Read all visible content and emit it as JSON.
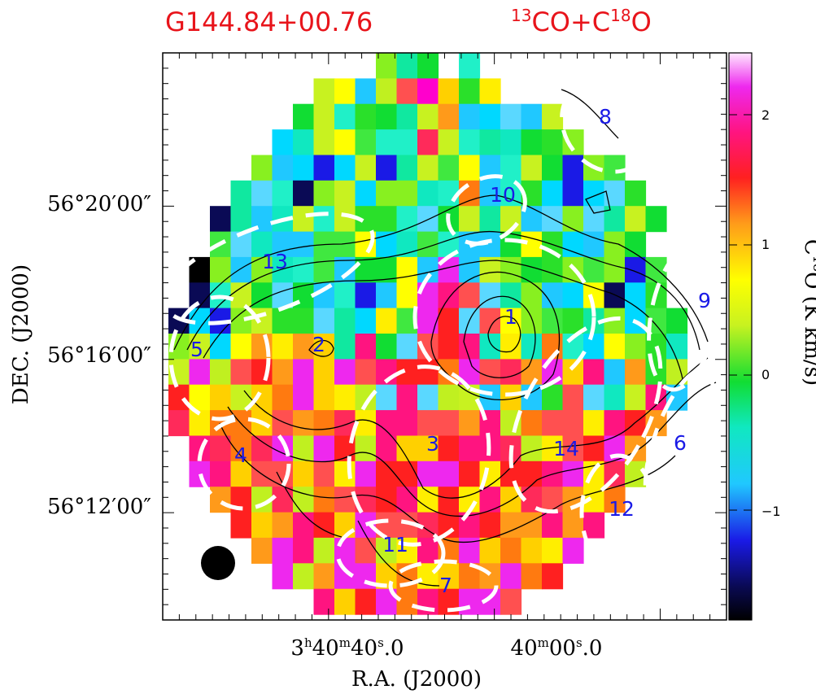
{
  "title_left": "G144.84+00.76",
  "title_right": {
    "sup1": "13",
    "t1": "CO+C",
    "sup2": "18",
    "t2": "O"
  },
  "xlabel": "R.A. (J2000)",
  "ylabel": "DEC. (J2000)",
  "x_ticks": [
    {
      "h": "3",
      "hs": "h",
      "m": "40",
      "ms": "m",
      "s": "40",
      "ss": "s",
      "frac": ".0"
    },
    {
      "h": "",
      "hs": "",
      "m": "40",
      "ms": "m",
      "s": "00",
      "ss": "s",
      "frac": ".0"
    }
  ],
  "y_ticks": [
    "56°20′00″",
    "56°16′00″",
    "56°12′00″"
  ],
  "colorbar": {
    "label": {
      "pre": "C",
      "sup": "18",
      "post": "O  (K km/s)"
    },
    "ticks": [
      "2",
      "1",
      "0",
      "−1"
    ],
    "range": [
      -1.8,
      2.5
    ]
  },
  "chart_data": {
    "type": "heatmap",
    "title": "G144.84+00.76",
    "subtitle": "13CO+C18O",
    "xlabel": "R.A. (J2000)",
    "ylabel": "DEC. (J2000)",
    "colorbar_label": "C18O (K km/s)",
    "color_range": [
      -1.8,
      2.5
    ],
    "x_tick_labels": [
      "3h40m40.0s",
      "40m00.0s"
    ],
    "y_tick_labels": [
      "56°20'00\"",
      "56°16'00\"",
      "56°12'00\""
    ],
    "colorbar_ticks": [
      2,
      1,
      0,
      -1
    ],
    "map_rows_top_to_bottom": [
      "..........---.-..........",
      ".......000++3+0+.........",
      "......-0-0--0+0-000......",
      ".....-000---+0--0-0-.....",
      "....-0-7-07-0-00-0-7--...",
      "...-0-7-0---0-+0-0-7-00..",
      "..7-000-000-0-0-000-0-0-.",
      "..-0000--0-0--00-00-0--..",
      ".9-0-0--0--00+00--0---7-.",
      ".7-0-0-0-700+++0--0-07-0.",
      "7-7-0000--+-++0+0--0-----",
      "-0-0++++-+-0+++0+0+--0-00",
      "0++++++++++++++++++++0+0+",
      "+0+0++++++0+0+00+00+000+0",
      "++++++++++++++++++++++++",
      ".++++++++++++++++++++++.",
      ".++++++++++++++++++++++.",
      "..++++++++++++++++++++..",
      "...++++++++++++++++++...",
      "....++++++++++++++++....",
      ".....++++++++++++++.....",
      ".......++++++++++......."
    ],
    "regions": [
      {
        "id": "1"
      },
      {
        "id": "2"
      },
      {
        "id": "3"
      },
      {
        "id": "4"
      },
      {
        "id": "5"
      },
      {
        "id": "6"
      },
      {
        "id": "7"
      },
      {
        "id": "8"
      },
      {
        "id": "9"
      },
      {
        "id": "10"
      },
      {
        "id": "11"
      },
      {
        "id": "12"
      },
      {
        "id": "13"
      },
      {
        "id": "14"
      }
    ],
    "contours": "13CO integrated intensity (black)",
    "beam": "filled circle, lower-left"
  }
}
